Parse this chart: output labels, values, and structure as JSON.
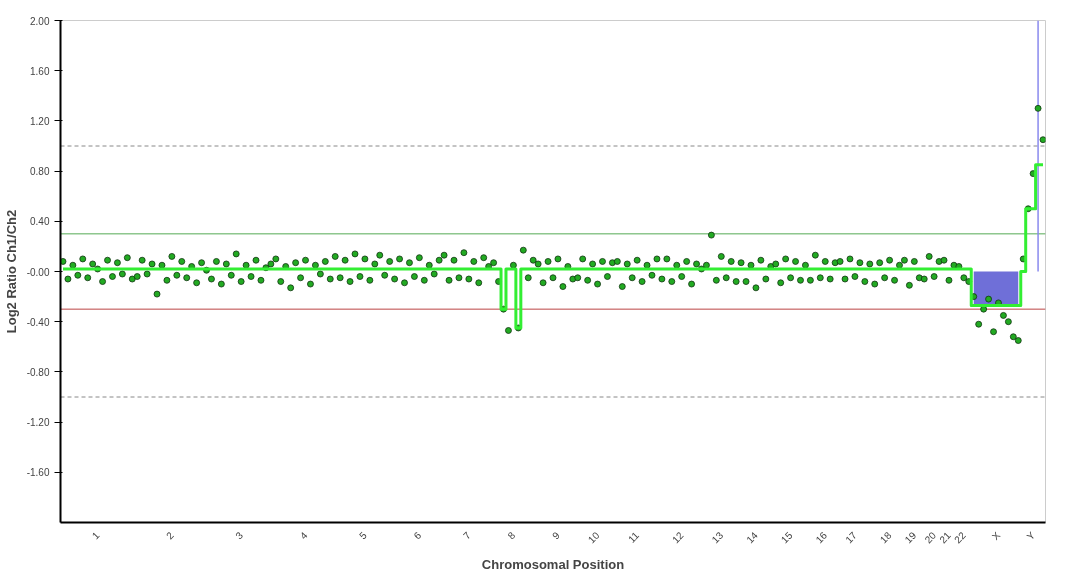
{
  "chart_data": {
    "type": "scatter",
    "xlabel": "Chromosomal Position",
    "ylabel": "Log2 Ratio Ch1/Ch2",
    "categories": [
      null,
      null,
      null,
      null,
      null,
      null,
      null,
      "1",
      null,
      null,
      null,
      null,
      null,
      null,
      null,
      null,
      null,
      null,
      null,
      null,
      null,
      null,
      "2",
      null,
      null,
      null,
      null,
      null,
      null,
      null,
      null,
      null,
      null,
      null,
      null,
      null,
      "3",
      null,
      null,
      null,
      null,
      null,
      null,
      null,
      null,
      null,
      null,
      null,
      null,
      "4",
      null,
      null,
      null,
      null,
      null,
      null,
      null,
      null,
      null,
      null,
      null,
      "5",
      null,
      null,
      null,
      null,
      null,
      null,
      null,
      null,
      null,
      null,
      "6",
      null,
      null,
      null,
      null,
      null,
      null,
      null,
      null,
      null,
      "7",
      null,
      null,
      null,
      null,
      null,
      null,
      null,
      null,
      "8",
      null,
      null,
      null,
      null,
      null,
      null,
      null,
      null,
      "9",
      null,
      null,
      null,
      null,
      null,
      null,
      null,
      "10",
      null,
      null,
      null,
      null,
      null,
      null,
      null,
      "11",
      null,
      null,
      null,
      null,
      null,
      null,
      null,
      null,
      "12",
      null,
      null,
      null,
      null,
      null,
      null,
      null,
      "13",
      null,
      null,
      null,
      null,
      null,
      null,
      "14",
      null,
      null,
      null,
      null,
      null,
      null,
      "15",
      null,
      null,
      null,
      null,
      null,
      null,
      "16",
      null,
      null,
      null,
      null,
      null,
      "17",
      null,
      null,
      null,
      null,
      null,
      null,
      "18",
      null,
      null,
      null,
      null,
      "19",
      null,
      null,
      null,
      "20",
      null,
      null,
      "21",
      null,
      null,
      "22",
      null,
      null,
      null,
      null,
      null,
      null,
      "X",
      null,
      null,
      null,
      null,
      null,
      null,
      "Y",
      null,
      null
    ],
    "ylim": [
      -2.0,
      2.0
    ],
    "yticks": [
      {
        "value": 2.0,
        "label": "2.00"
      },
      {
        "value": 1.6,
        "label": "1.60"
      },
      {
        "value": 1.2,
        "label": "1.20"
      },
      {
        "value": 0.8,
        "label": "0.80"
      },
      {
        "value": 0.4,
        "label": "0.40"
      },
      {
        "value": 0,
        "label": "-0.00"
      },
      {
        "value": -0.4,
        "label": "-0.40"
      },
      {
        "value": -0.8,
        "label": "-0.80"
      },
      {
        "value": -1.2,
        "label": "-1.20"
      },
      {
        "value": -1.6,
        "label": "-1.60"
      }
    ],
    "grid": false,
    "ref_lines": [
      {
        "axis": "y",
        "value": 1.0,
        "color": "#888888",
        "line_style": "dashed"
      },
      {
        "axis": "y",
        "value": -1.0,
        "color": "#888888",
        "line_style": "dashed"
      },
      {
        "axis": "y",
        "value": 0.3,
        "color": "#55aa55",
        "line_style": "solid"
      },
      {
        "axis": "y",
        "value": -0.3,
        "color": "#bb4444",
        "line_style": "solid"
      }
    ],
    "series": [
      {
        "type": "area",
        "color": "#6f6fd8",
        "values": [
          null,
          null,
          null,
          null,
          null,
          null,
          null,
          null,
          null,
          null,
          null,
          null,
          null,
          null,
          null,
          null,
          null,
          null,
          null,
          null,
          null,
          null,
          null,
          null,
          null,
          null,
          null,
          null,
          null,
          null,
          null,
          null,
          null,
          null,
          null,
          null,
          null,
          null,
          null,
          null,
          null,
          null,
          null,
          null,
          null,
          null,
          null,
          null,
          null,
          null,
          null,
          null,
          null,
          null,
          null,
          null,
          null,
          null,
          null,
          null,
          null,
          null,
          null,
          null,
          null,
          null,
          null,
          null,
          null,
          null,
          null,
          null,
          null,
          null,
          null,
          null,
          null,
          null,
          null,
          null,
          null,
          null,
          null,
          null,
          null,
          null,
          null,
          null,
          null,
          null,
          null,
          null,
          null,
          null,
          null,
          null,
          null,
          null,
          null,
          null,
          null,
          null,
          null,
          null,
          null,
          null,
          null,
          null,
          null,
          null,
          null,
          null,
          null,
          null,
          null,
          null,
          null,
          null,
          null,
          null,
          null,
          null,
          null,
          null,
          null,
          null,
          null,
          null,
          null,
          null,
          null,
          null,
          null,
          null,
          null,
          null,
          null,
          null,
          null,
          null,
          null,
          null,
          null,
          null,
          null,
          null,
          null,
          null,
          null,
          null,
          null,
          null,
          null,
          null,
          null,
          null,
          null,
          null,
          null,
          null,
          null,
          null,
          null,
          null,
          null,
          null,
          null,
          null,
          null,
          null,
          null,
          null,
          null,
          null,
          null,
          null,
          null,
          null,
          null,
          null,
          null,
          null,
          null,
          null,
          -0.27,
          -0.27,
          -0.27,
          -0.27,
          -0.27,
          -0.27,
          -0.27,
          -0.27,
          -0.27,
          -0.27,
          null,
          null,
          null,
          null,
          null
        ]
      },
      {
        "type": "bar",
        "color": "#8888ee",
        "values": [
          null,
          null,
          null,
          null,
          null,
          null,
          null,
          null,
          null,
          null,
          null,
          null,
          null,
          null,
          null,
          null,
          null,
          null,
          null,
          null,
          null,
          null,
          null,
          null,
          null,
          null,
          null,
          null,
          null,
          null,
          null,
          null,
          null,
          null,
          null,
          null,
          null,
          null,
          null,
          null,
          null,
          null,
          null,
          null,
          null,
          null,
          null,
          null,
          null,
          null,
          null,
          null,
          null,
          null,
          null,
          null,
          null,
          null,
          null,
          null,
          null,
          null,
          null,
          null,
          null,
          null,
          null,
          null,
          null,
          null,
          null,
          null,
          null,
          null,
          null,
          null,
          null,
          null,
          null,
          null,
          null,
          null,
          null,
          null,
          null,
          null,
          null,
          null,
          null,
          null,
          null,
          null,
          null,
          null,
          null,
          null,
          null,
          null,
          null,
          null,
          null,
          null,
          null,
          null,
          null,
          null,
          null,
          null,
          null,
          null,
          null,
          null,
          null,
          null,
          null,
          null,
          null,
          null,
          null,
          null,
          null,
          null,
          null,
          null,
          null,
          null,
          null,
          null,
          null,
          null,
          null,
          null,
          null,
          null,
          null,
          null,
          null,
          null,
          null,
          null,
          null,
          null,
          null,
          null,
          null,
          null,
          null,
          null,
          null,
          null,
          null,
          null,
          null,
          null,
          null,
          null,
          null,
          null,
          null,
          null,
          null,
          null,
          null,
          null,
          null,
          null,
          null,
          null,
          null,
          null,
          null,
          null,
          null,
          null,
          null,
          null,
          null,
          null,
          null,
          null,
          null,
          null,
          null,
          null,
          null,
          null,
          null,
          null,
          null,
          null,
          null,
          null,
          null,
          null,
          null,
          null,
          null,
          2.0,
          null
        ]
      },
      {
        "color": "#22aa22",
        "marker": "circle",
        "values": [
          0.08,
          -0.06,
          0.05,
          -0.03,
          0.1,
          -0.05,
          0.06,
          0.02,
          -0.08,
          0.09,
          -0.04,
          0.07,
          -0.02,
          0.11,
          -0.06,
          -0.04,
          0.09,
          -0.02,
          0.06,
          -0.18,
          0.05,
          -0.07,
          0.12,
          -0.03,
          0.08,
          -0.05,
          0.04,
          -0.09,
          0.07,
          0.01,
          -0.06,
          0.08,
          -0.1,
          0.06,
          -0.03,
          0.14,
          -0.08,
          0.05,
          -0.04,
          0.09,
          -0.07,
          0.03,
          0.06,
          0.1,
          -0.08,
          0.04,
          -0.13,
          0.07,
          -0.05,
          0.09,
          -0.1,
          0.05,
          -0.02,
          0.08,
          -0.06,
          0.12,
          -0.05,
          0.09,
          -0.08,
          0.14,
          -0.04,
          0.1,
          -0.07,
          0.06,
          0.13,
          -0.03,
          0.08,
          -0.06,
          0.1,
          -0.09,
          0.07,
          -0.04,
          0.11,
          -0.07,
          0.05,
          -0.02,
          0.09,
          0.13,
          -0.07,
          0.09,
          -0.05,
          0.15,
          -0.06,
          0.08,
          -0.09,
          0.11,
          0.04,
          0.07,
          -0.08,
          -0.3,
          -0.47,
          0.05,
          -0.45,
          0.17,
          -0.05,
          0.09,
          0.06,
          -0.09,
          0.08,
          -0.05,
          0.1,
          -0.12,
          0.04,
          -0.06,
          -0.05,
          0.1,
          -0.07,
          0.06,
          -0.1,
          0.08,
          -0.04,
          0.07,
          0.08,
          -0.12,
          0.06,
          -0.05,
          0.09,
          -0.08,
          0.05,
          -0.03,
          0.1,
          -0.06,
          0.1,
          -0.08,
          0.05,
          -0.04,
          0.08,
          -0.1,
          0.06,
          0.02,
          0.05,
          0.29,
          -0.07,
          0.12,
          -0.05,
          0.08,
          -0.08,
          0.07,
          -0.08,
          0.05,
          -0.13,
          0.09,
          -0.06,
          0.04,
          0.06,
          -0.09,
          0.1,
          -0.05,
          0.08,
          -0.07,
          0.05,
          -0.07,
          0.13,
          -0.05,
          0.08,
          -0.06,
          0.07,
          0.08,
          -0.06,
          0.1,
          -0.04,
          0.07,
          -0.08,
          0.06,
          -0.1,
          0.07,
          -0.05,
          0.09,
          -0.07,
          0.05,
          0.09,
          -0.11,
          0.08,
          -0.05,
          -0.06,
          0.12,
          -0.04,
          0.08,
          0.09,
          -0.07,
          0.05,
          0.04,
          -0.05,
          -0.08,
          -0.2,
          -0.42,
          -0.3,
          -0.22,
          -0.48,
          -0.25,
          -0.35,
          -0.4,
          -0.52,
          -0.55,
          0.1,
          0.5,
          0.78,
          1.3,
          1.05
        ]
      },
      {
        "type": "step",
        "color": "#33ee33",
        "marker": "none",
        "values": [
          0.02,
          0.02,
          0.02,
          0.02,
          0.02,
          0.02,
          0.02,
          0.02,
          0.02,
          0.02,
          0.02,
          0.02,
          0.02,
          0.02,
          0.02,
          0.02,
          0.02,
          0.02,
          0.02,
          0.02,
          0.02,
          0.02,
          0.02,
          0.02,
          0.02,
          0.02,
          0.02,
          0.02,
          0.02,
          0.02,
          0.02,
          0.02,
          0.02,
          0.02,
          0.02,
          0.02,
          0.02,
          0.02,
          0.02,
          0.02,
          0.02,
          0.02,
          0.02,
          0.02,
          0.02,
          0.02,
          0.02,
          0.02,
          0.02,
          0.02,
          0.02,
          0.02,
          0.02,
          0.02,
          0.02,
          0.02,
          0.02,
          0.02,
          0.02,
          0.02,
          0.02,
          0.02,
          0.02,
          0.02,
          0.02,
          0.02,
          0.02,
          0.02,
          0.02,
          0.02,
          0.02,
          0.02,
          0.02,
          0.02,
          0.02,
          0.02,
          0.02,
          0.02,
          0.02,
          0.02,
          0.02,
          0.02,
          0.02,
          0.02,
          0.02,
          0.02,
          0.02,
          0.02,
          0.02,
          -0.3,
          0.02,
          0.02,
          -0.45,
          0.02,
          0.02,
          0.02,
          0.02,
          0.02,
          0.02,
          0.02,
          0.02,
          0.02,
          0.02,
          0.02,
          0.02,
          0.02,
          0.02,
          0.02,
          0.02,
          0.02,
          0.02,
          0.02,
          0.02,
          0.02,
          0.02,
          0.02,
          0.02,
          0.02,
          0.02,
          0.02,
          0.02,
          0.02,
          0.02,
          0.02,
          0.02,
          0.02,
          0.02,
          0.02,
          0.02,
          0.02,
          0.02,
          0.02,
          0.02,
          0.02,
          0.02,
          0.02,
          0.02,
          0.02,
          0.02,
          0.02,
          0.02,
          0.02,
          0.02,
          0.02,
          0.02,
          0.02,
          0.02,
          0.02,
          0.02,
          0.02,
          0.02,
          0.02,
          0.02,
          0.02,
          0.02,
          0.02,
          0.02,
          0.02,
          0.02,
          0.02,
          0.02,
          0.02,
          0.02,
          0.02,
          0.02,
          0.02,
          0.02,
          0.02,
          0.02,
          0.02,
          0.02,
          0.02,
          0.02,
          0.02,
          0.02,
          0.02,
          0.02,
          0.02,
          0.02,
          0.02,
          0.02,
          0.02,
          0.02,
          0.02,
          -0.27,
          -0.27,
          -0.27,
          -0.27,
          -0.27,
          -0.27,
          -0.27,
          -0.27,
          -0.27,
          -0.27,
          0.0,
          0.5,
          0.5,
          0.85,
          0.85
        ]
      }
    ]
  }
}
